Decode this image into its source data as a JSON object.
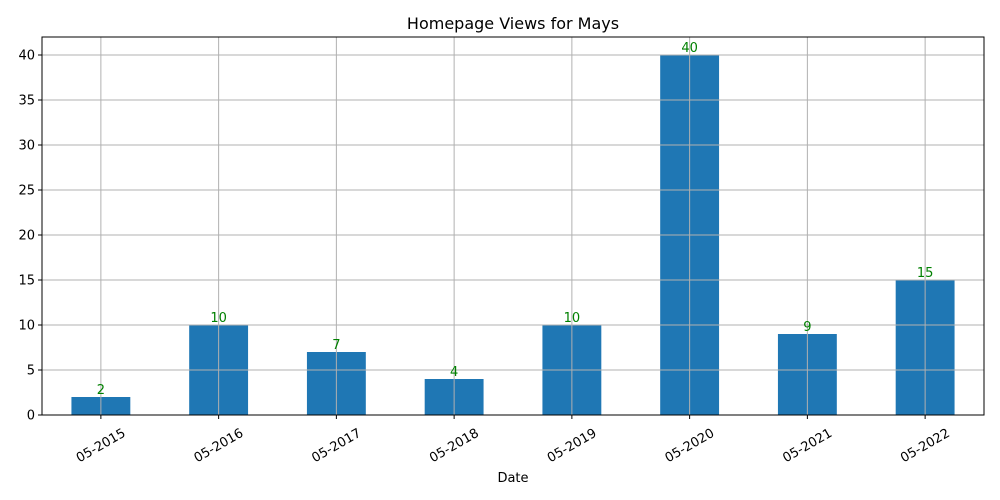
{
  "chart_data": {
    "type": "bar",
    "title": "Homepage Views for Mays",
    "xlabel": "Date",
    "ylabel": "",
    "categories": [
      "05-2015",
      "05-2016",
      "05-2017",
      "05-2018",
      "05-2019",
      "05-2020",
      "05-2021",
      "05-2022"
    ],
    "values": [
      2,
      10,
      7,
      4,
      10,
      40,
      9,
      15
    ],
    "ylim": [
      0,
      42
    ],
    "yticks": [
      0,
      5,
      10,
      15,
      20,
      25,
      30,
      35,
      40
    ],
    "grid": true,
    "bar_color": "#1f77b4",
    "label_color": "#008000",
    "xtick_rotation_deg": 30
  }
}
